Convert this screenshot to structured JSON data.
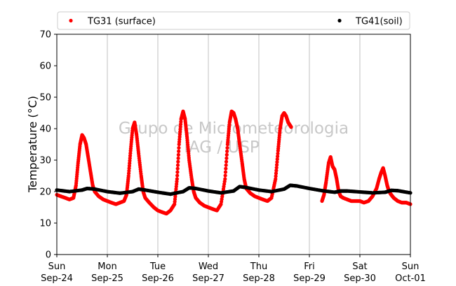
{
  "chart_data": {
    "type": "scatter",
    "title": "",
    "xlabel": "",
    "ylabel": "Temperature (°C)",
    "ylim": [
      0,
      70
    ],
    "yticks": [
      0,
      10,
      20,
      30,
      40,
      50,
      60,
      70
    ],
    "xlim": [
      0,
      7
    ],
    "x_unit": "days from Sun Sep-24 00:00",
    "xticks": [
      {
        "x": 0,
        "day": "Sun",
        "date": "Sep-24"
      },
      {
        "x": 1,
        "day": "Mon",
        "date": "Sep-25"
      },
      {
        "x": 2,
        "day": "Tue",
        "date": "Sep-26"
      },
      {
        "x": 3,
        "day": "Wed",
        "date": "Sep-27"
      },
      {
        "x": 4,
        "day": "Thu",
        "date": "Sep-28"
      },
      {
        "x": 5,
        "day": "Fri",
        "date": "Sep-29"
      },
      {
        "x": 6,
        "day": "Sat",
        "date": "Sep-30"
      },
      {
        "x": 7,
        "day": "Sun",
        "date": "Oct-01"
      }
    ],
    "grid": "vertical",
    "legend_position": "top",
    "watermark": [
      "Grupo de Micrometeorologia",
      "IAG / USP"
    ],
    "series": [
      {
        "name": "TG31 (surface)",
        "color": "#ff0000",
        "x": [
          0.0,
          0.08,
          0.17,
          0.25,
          0.33,
          0.38,
          0.42,
          0.46,
          0.5,
          0.54,
          0.58,
          0.62,
          0.67,
          0.71,
          0.75,
          0.83,
          0.92,
          1.0,
          1.08,
          1.17,
          1.25,
          1.33,
          1.38,
          1.42,
          1.46,
          1.5,
          1.54,
          1.58,
          1.62,
          1.67,
          1.71,
          1.75,
          1.83,
          1.92,
          2.0,
          2.08,
          2.17,
          2.25,
          2.33,
          2.38,
          2.42,
          2.46,
          2.5,
          2.54,
          2.58,
          2.62,
          2.67,
          2.71,
          2.75,
          2.83,
          2.92,
          3.0,
          3.08,
          3.17,
          3.25,
          3.33,
          3.38,
          3.42,
          3.46,
          3.5,
          3.54,
          3.58,
          3.62,
          3.67,
          3.71,
          3.75,
          3.83,
          3.92,
          4.0,
          4.08,
          4.17,
          4.25,
          4.33,
          4.38,
          4.42,
          4.46,
          4.5,
          4.54,
          4.58,
          4.62,
          4.64,
          5.25,
          5.29,
          5.33,
          5.38,
          5.42,
          5.46,
          5.5,
          5.54,
          5.58,
          5.62,
          5.67,
          5.75,
          5.83,
          5.92,
          6.0,
          6.08,
          6.17,
          6.25,
          6.33,
          6.38,
          6.42,
          6.46,
          6.5,
          6.54,
          6.58,
          6.62,
          6.67,
          6.75,
          6.83,
          6.92,
          7.0
        ],
        "y": [
          19.0,
          18.5,
          18.0,
          17.5,
          18.0,
          22.0,
          29.0,
          35.0,
          38.0,
          37.0,
          35.0,
          31.0,
          26.0,
          22.0,
          20.0,
          18.5,
          17.5,
          17.0,
          16.5,
          16.0,
          16.5,
          17.0,
          19.0,
          25.0,
          33.0,
          40.0,
          42.0,
          38.0,
          32.0,
          25.0,
          20.0,
          18.0,
          16.5,
          15.0,
          14.0,
          13.5,
          13.0,
          14.0,
          16.0,
          24.0,
          35.0,
          43.0,
          45.5,
          43.0,
          37.0,
          30.0,
          24.0,
          20.0,
          18.0,
          16.5,
          15.5,
          15.0,
          14.5,
          14.0,
          16.0,
          24.0,
          35.0,
          42.0,
          45.5,
          45.0,
          43.0,
          40.0,
          35.0,
          29.0,
          24.0,
          21.0,
          19.5,
          18.5,
          18.0,
          17.5,
          17.0,
          18.0,
          24.0,
          33.0,
          40.0,
          44.0,
          45.0,
          44.0,
          42.0,
          41.0,
          40.5,
          17.0,
          19.0,
          23.0,
          29.0,
          31.0,
          28.0,
          27.0,
          24.0,
          20.0,
          18.5,
          18.0,
          17.5,
          17.0,
          17.0,
          17.0,
          16.5,
          17.0,
          18.5,
          21.0,
          24.0,
          26.0,
          27.5,
          25.0,
          22.0,
          20.0,
          19.0,
          18.0,
          17.0,
          16.5,
          16.5,
          16.0
        ]
      },
      {
        "name": "TG41(soil)",
        "color": "#000000",
        "x": [
          0.0,
          0.25,
          0.5,
          0.6,
          0.75,
          1.0,
          1.25,
          1.5,
          1.62,
          1.75,
          2.0,
          2.25,
          2.5,
          2.62,
          2.75,
          3.0,
          3.25,
          3.5,
          3.62,
          3.75,
          4.0,
          4.25,
          4.5,
          4.62,
          4.75,
          5.0,
          5.25,
          5.5,
          5.62,
          5.75,
          6.0,
          6.25,
          6.5,
          6.62,
          6.75,
          7.0
        ],
        "y": [
          20.5,
          20.0,
          20.5,
          21.0,
          20.8,
          20.0,
          19.5,
          20.0,
          20.8,
          20.5,
          19.8,
          19.2,
          20.0,
          21.2,
          21.0,
          20.2,
          19.6,
          20.2,
          21.6,
          21.3,
          20.5,
          20.0,
          20.8,
          22.0,
          21.8,
          21.0,
          20.3,
          19.8,
          20.2,
          20.2,
          19.9,
          19.6,
          19.8,
          20.4,
          20.3,
          19.6
        ]
      }
    ]
  }
}
